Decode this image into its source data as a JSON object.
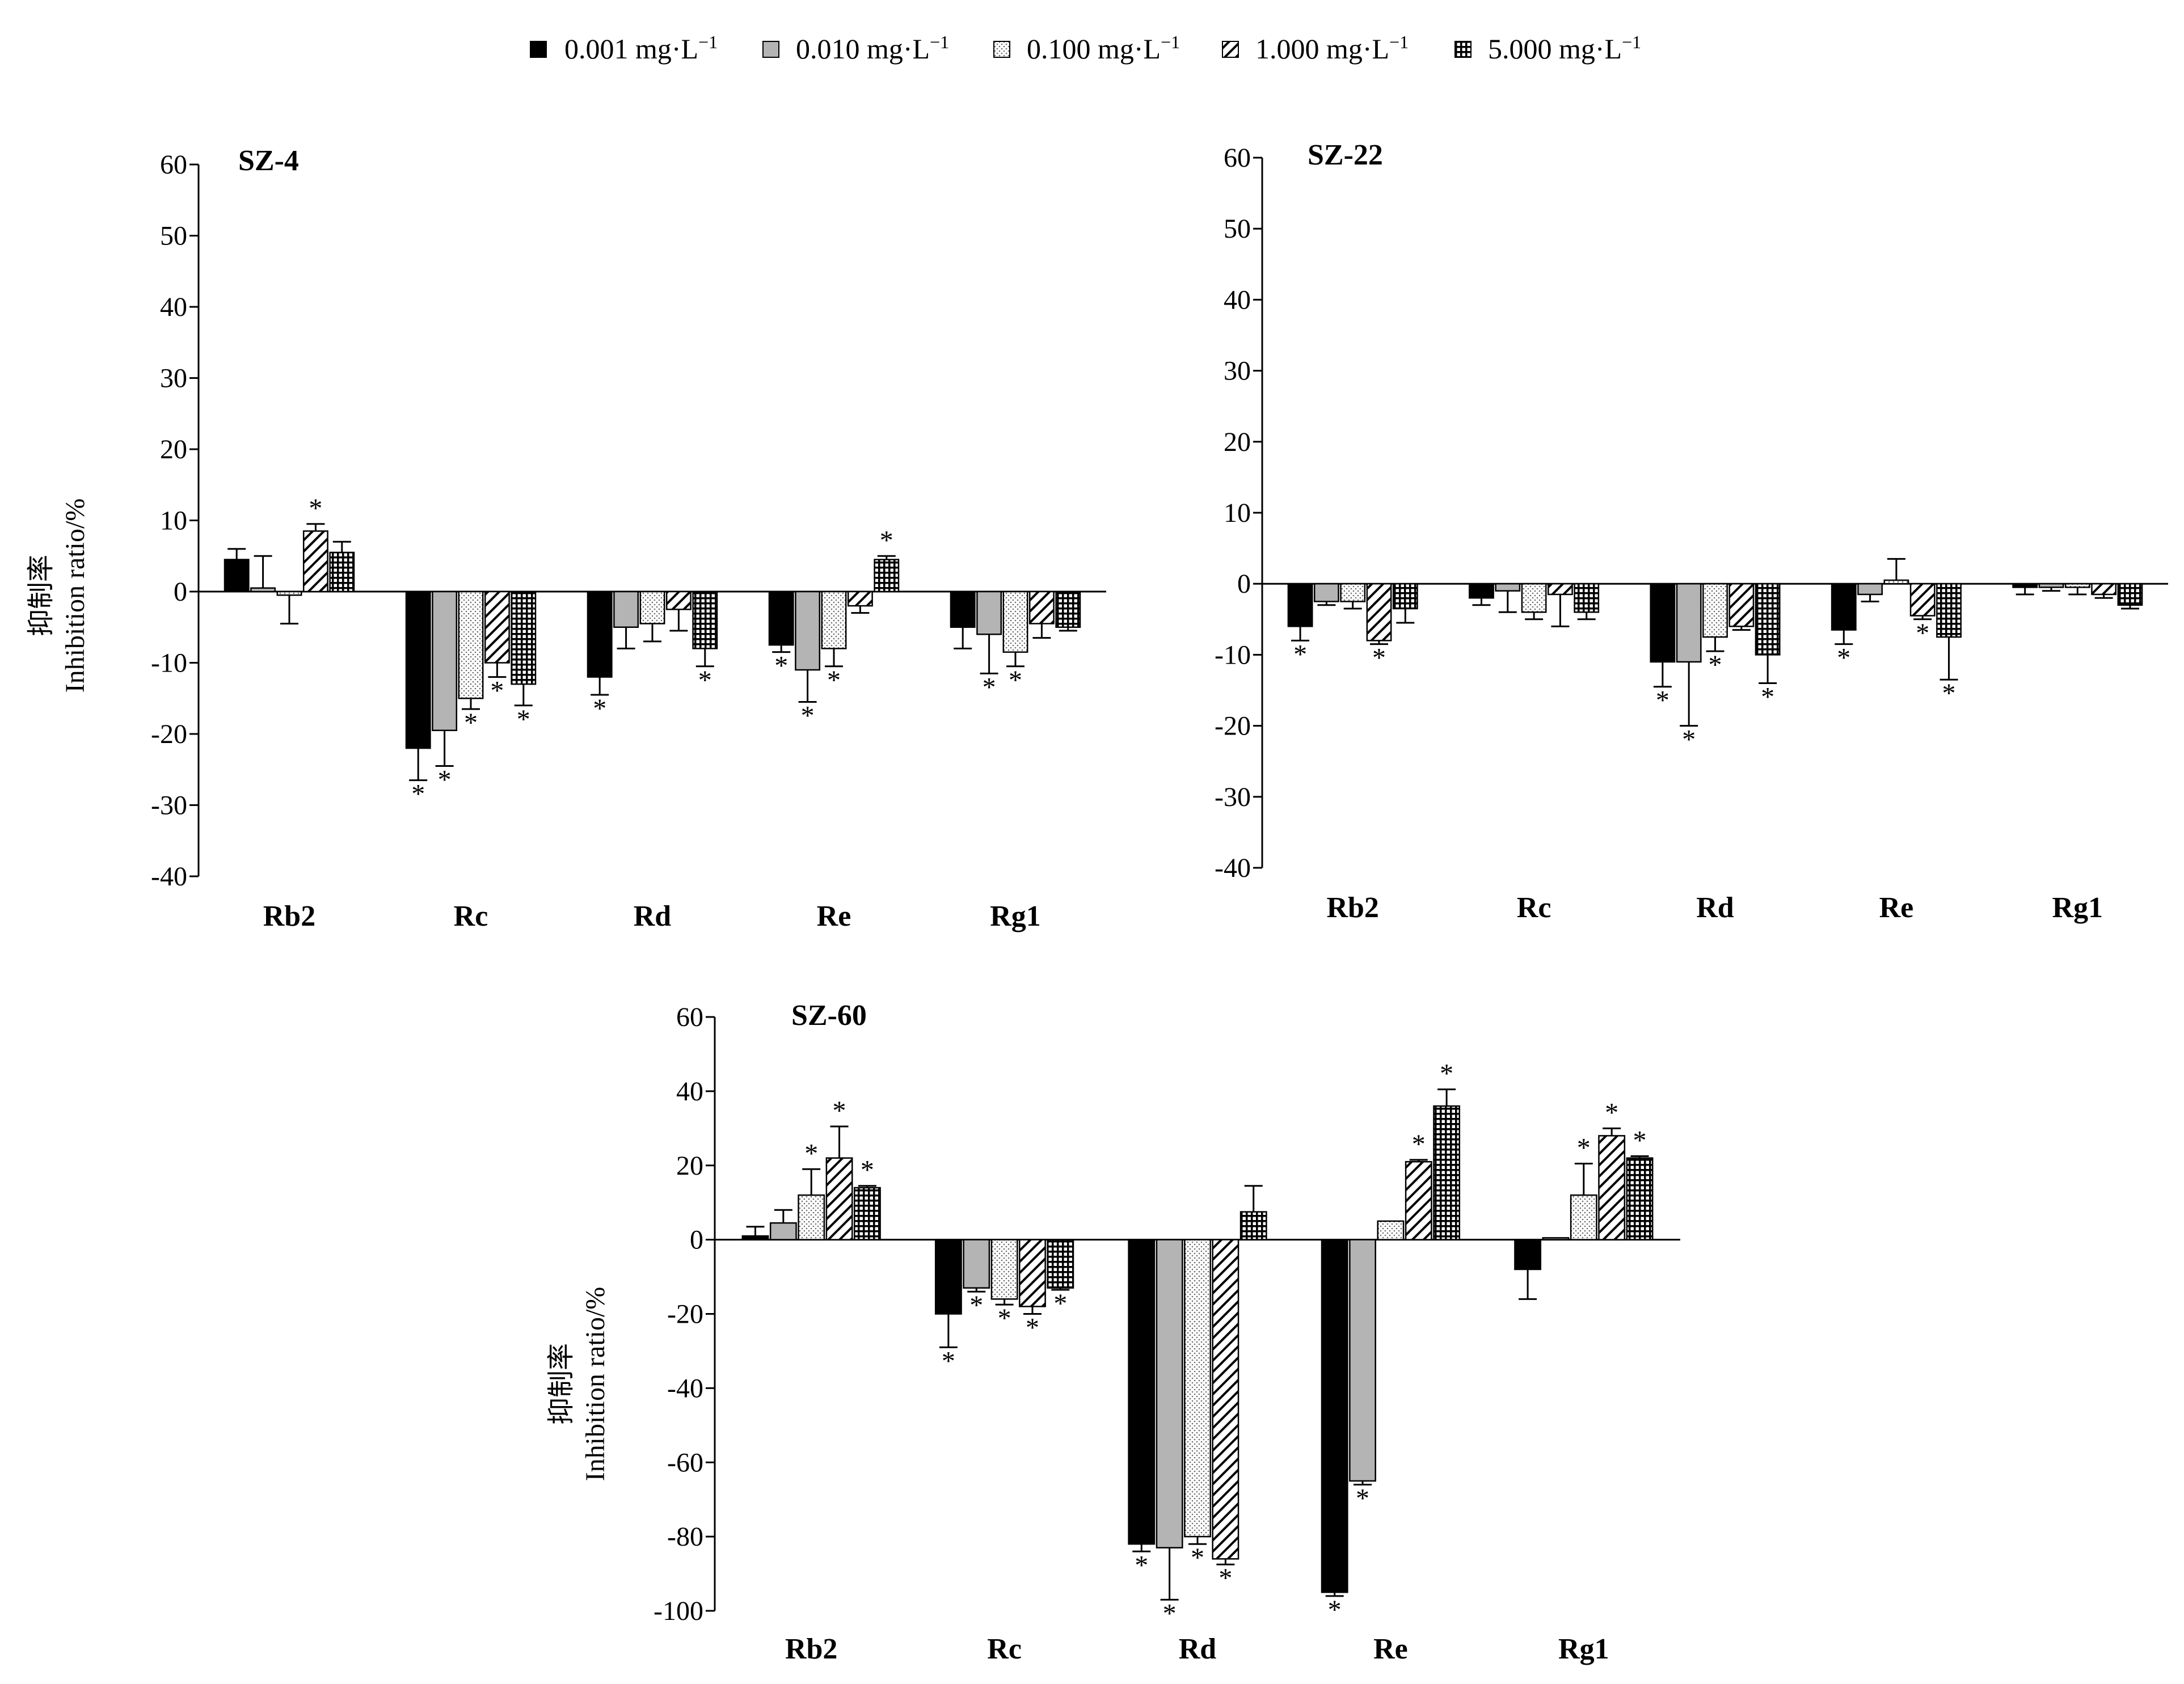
{
  "legend": [
    {
      "label": "0.001 mg·L",
      "sup": "−1",
      "pattern": "solid"
    },
    {
      "label": "0.010 mg·L",
      "sup": "−1",
      "pattern": "gray"
    },
    {
      "label": "0.100 mg·L",
      "sup": "−1",
      "pattern": "dots"
    },
    {
      "label": "1.000 mg·L",
      "sup": "−1",
      "pattern": "diag"
    },
    {
      "label": "5.000 mg·L",
      "sup": "−1",
      "pattern": "grid"
    }
  ],
  "chart_data": [
    {
      "type": "bar",
      "title": "SZ-4",
      "ylabel_cn": "抑制率",
      "ylabel": "Inhibition ratio/%",
      "ylim": [
        -40,
        60
      ],
      "yticks": [
        60,
        50,
        40,
        30,
        20,
        10,
        0,
        -10,
        -20,
        -30,
        -40
      ],
      "categories": [
        "Rb2",
        "Rc",
        "Rd",
        "Re",
        "Rg1"
      ],
      "series": [
        {
          "name": "0.001 mg·L−1",
          "values": [
            4.5,
            -22,
            -12,
            -7.5,
            -5
          ],
          "errors": [
            1.5,
            4.5,
            2.5,
            1,
            3
          ],
          "sig": [
            false,
            true,
            true,
            true,
            false
          ]
        },
        {
          "name": "0.010 mg·L−1",
          "values": [
            0.5,
            -19.5,
            -5,
            -11,
            -6
          ],
          "errors": [
            4.5,
            5,
            3,
            4.5,
            5.5
          ],
          "sig": [
            false,
            true,
            false,
            true,
            true
          ]
        },
        {
          "name": "0.100 mg·L−1",
          "values": [
            -0.5,
            -15,
            -4.5,
            -8,
            -8.5
          ],
          "errors": [
            4,
            1.5,
            2.5,
            2.5,
            2
          ],
          "sig": [
            false,
            true,
            false,
            true,
            true
          ]
        },
        {
          "name": "1.000 mg·L−1",
          "values": [
            8.5,
            -10,
            -2.5,
            -2,
            -4.5
          ],
          "errors": [
            1,
            2,
            3,
            1,
            2
          ],
          "sig": [
            true,
            true,
            false,
            false,
            false
          ]
        },
        {
          "name": "5.000 mg·L−1",
          "values": [
            5.5,
            -13,
            -8,
            4.5,
            -5
          ],
          "errors": [
            1.5,
            3,
            2.5,
            0.5,
            0.5
          ],
          "sig": [
            false,
            true,
            true,
            true,
            false
          ]
        }
      ]
    },
    {
      "type": "bar",
      "title": "SZ-22",
      "ylabel_cn": "",
      "ylabel": "",
      "ylim": [
        -40,
        60
      ],
      "yticks": [
        60,
        50,
        40,
        30,
        20,
        10,
        0,
        -10,
        -20,
        -30,
        -40
      ],
      "categories": [
        "Rb2",
        "Rc",
        "Rd",
        "Re",
        "Rg1"
      ],
      "series": [
        {
          "name": "0.001 mg·L−1",
          "values": [
            -6,
            -2,
            -11,
            -6.5,
            -0.5
          ],
          "errors": [
            2,
            1,
            3.5,
            2,
            1
          ],
          "sig": [
            true,
            false,
            true,
            true,
            false
          ]
        },
        {
          "name": "0.010 mg·L−1",
          "values": [
            -2.5,
            -1,
            -11,
            -1.5,
            -0.5
          ],
          "errors": [
            0.5,
            3,
            9,
            1,
            0.5
          ],
          "sig": [
            false,
            false,
            true,
            false,
            false
          ]
        },
        {
          "name": "0.100 mg·L−1",
          "values": [
            -2.5,
            -4,
            -7.5,
            0.5,
            -0.5
          ],
          "errors": [
            1,
            1,
            2,
            3,
            1
          ],
          "sig": [
            false,
            false,
            true,
            false,
            false
          ]
        },
        {
          "name": "1.000 mg·L−1",
          "values": [
            -8,
            -1.5,
            -6,
            -4.5,
            -1.5
          ],
          "errors": [
            0.5,
            4.5,
            0.5,
            0.5,
            0.5
          ],
          "sig": [
            true,
            false,
            false,
            true,
            false
          ]
        },
        {
          "name": "5.000 mg·L−1",
          "values": [
            -3.5,
            -4,
            -10,
            -7.5,
            -3
          ],
          "errors": [
            2,
            1,
            4,
            6,
            0.5
          ],
          "sig": [
            false,
            false,
            true,
            true,
            false
          ]
        }
      ]
    },
    {
      "type": "bar",
      "title": "SZ-60",
      "ylabel_cn": "抑制率",
      "ylabel": "Inhibition ratio/%",
      "ylim": [
        -100,
        60
      ],
      "yticks": [
        60,
        40,
        20,
        0,
        -20,
        -40,
        -60,
        -80,
        -100
      ],
      "categories": [
        "Rb2",
        "Rc",
        "Rd",
        "Re",
        "Rg1"
      ],
      "series": [
        {
          "name": "0.001 mg·L−1",
          "values": [
            1,
            -20,
            -82,
            -95,
            -8
          ],
          "errors": [
            2.5,
            9,
            2,
            1,
            8
          ],
          "sig": [
            false,
            true,
            true,
            true,
            false
          ]
        },
        {
          "name": "0.010 mg·L−1",
          "values": [
            4.5,
            -13,
            -83,
            -65,
            0.5
          ],
          "errors": [
            3.5,
            1,
            14,
            1,
            0
          ],
          "sig": [
            false,
            true,
            true,
            true,
            false
          ]
        },
        {
          "name": "0.100 mg·L−1",
          "values": [
            12,
            -16,
            -80,
            5,
            12
          ],
          "errors": [
            7,
            1.5,
            2,
            0,
            8.5
          ],
          "sig": [
            true,
            true,
            true,
            false,
            true
          ]
        },
        {
          "name": "1.000 mg·L−1",
          "values": [
            22,
            -18,
            -86,
            21,
            28
          ],
          "errors": [
            8.5,
            2,
            1.5,
            0.5,
            2
          ],
          "sig": [
            true,
            true,
            true,
            true,
            true
          ]
        },
        {
          "name": "5.000 mg·L−1",
          "values": [
            14,
            -13,
            7.5,
            36,
            22
          ],
          "errors": [
            0.5,
            0.5,
            7,
            4.5,
            0.5
          ],
          "sig": [
            true,
            true,
            false,
            true,
            true
          ]
        }
      ]
    }
  ],
  "sig_marker": "*"
}
